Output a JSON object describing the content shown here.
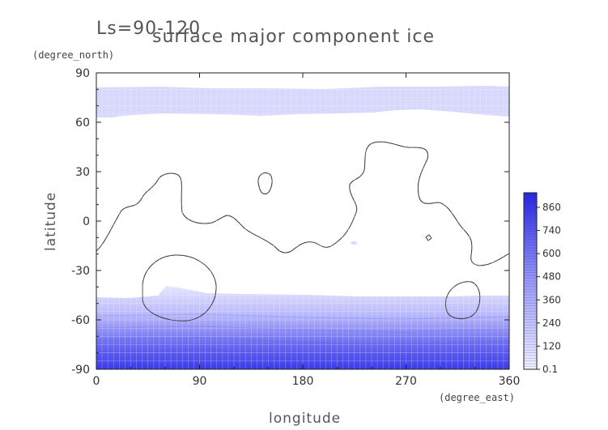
{
  "chart_data": {
    "type": "heatmap",
    "title": "surface major component ice",
    "season_label": "Ls=90-120",
    "xlabel": "longitude",
    "ylabel": "latitude",
    "xunit": "(degree_east)",
    "yunit": "(degree_north)",
    "xlim": [
      0,
      360
    ],
    "ylim": [
      -90,
      90
    ],
    "xticks": [
      0,
      90,
      180,
      270,
      360
    ],
    "yticks": [
      90,
      60,
      30,
      0,
      -30,
      -60,
      -90
    ],
    "colorbar": {
      "tick_labels": [
        "860",
        "740",
        "600",
        "480",
        "360",
        "240",
        "120",
        "0.1"
      ],
      "low_color": "#eeeeff",
      "high_color": "#2a2ae6"
    },
    "north_cap": {
      "lat_min": 64,
      "lat_max": 81,
      "value_range": [
        0.1,
        120
      ]
    },
    "south_cap": {
      "lat_max": -45,
      "lat_min": -87,
      "value_range": [
        0.1,
        900
      ]
    },
    "contour_color": "#333333"
  }
}
